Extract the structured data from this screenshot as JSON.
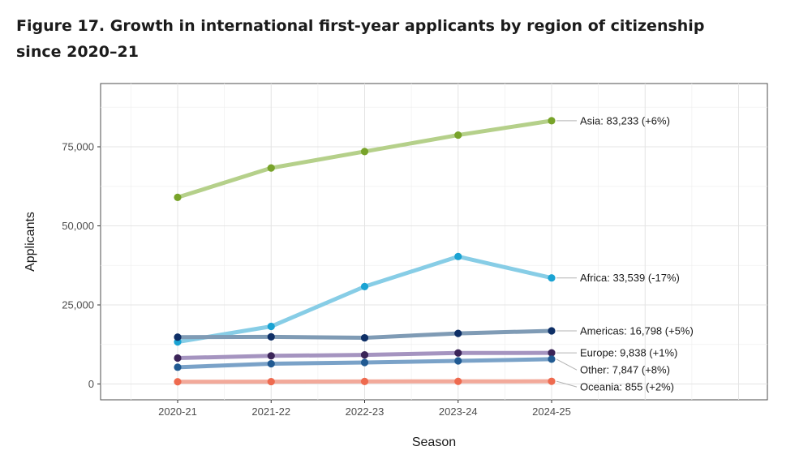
{
  "figure_title": "Figure 17. Growth in international first-year applicants by region of citizenship since 2020–21",
  "chart_data": {
    "type": "line",
    "title": "Figure 17. Growth in international first-year applicants by region of citizenship since 2020–21",
    "xlabel": "Season",
    "ylabel": "Applicants",
    "categories": [
      "2020-21",
      "2021-22",
      "2022-23",
      "2023-24",
      "2024-25"
    ],
    "ylim": [
      -5000,
      95000
    ],
    "yticks": [
      0,
      25000,
      50000,
      75000
    ],
    "ytick_labels": [
      "0",
      "25,000",
      "50,000",
      "75,000"
    ],
    "grid": true,
    "legend": "direct end labels",
    "series": [
      {
        "name": "Asia",
        "label": "Asia: 83,233 (+6%)",
        "values": [
          59000,
          68300,
          73500,
          78700,
          83233
        ],
        "line_color": "#b5d08a",
        "point_color": "#78a32a"
      },
      {
        "name": "Africa",
        "label": "Africa: 33,539 (-17%)",
        "values": [
          13300,
          18200,
          30800,
          40300,
          33539
        ],
        "line_color": "#87cde6",
        "point_color": "#1aa3d3"
      },
      {
        "name": "Americas",
        "label": "Americas: 16,798 (+5%)",
        "values": [
          14800,
          14900,
          14600,
          16000,
          16798
        ],
        "line_color": "#7f9bb5",
        "point_color": "#0e2f66"
      },
      {
        "name": "Europe",
        "label": "Europe: 9,838 (+1%)",
        "values": [
          8200,
          8900,
          9200,
          9800,
          9838
        ],
        "line_color": "#a594c0",
        "point_color": "#3b2458"
      },
      {
        "name": "Other",
        "label": "Other: 7,847 (+8%)",
        "values": [
          5300,
          6400,
          6800,
          7300,
          7847
        ],
        "line_color": "#7aa2c8",
        "point_color": "#215a92"
      },
      {
        "name": "Oceania",
        "label": "Oceania: 855 (+2%)",
        "values": [
          700,
          750,
          800,
          840,
          855
        ],
        "line_color": "#f2a99a",
        "point_color": "#ee6a4f"
      }
    ]
  }
}
